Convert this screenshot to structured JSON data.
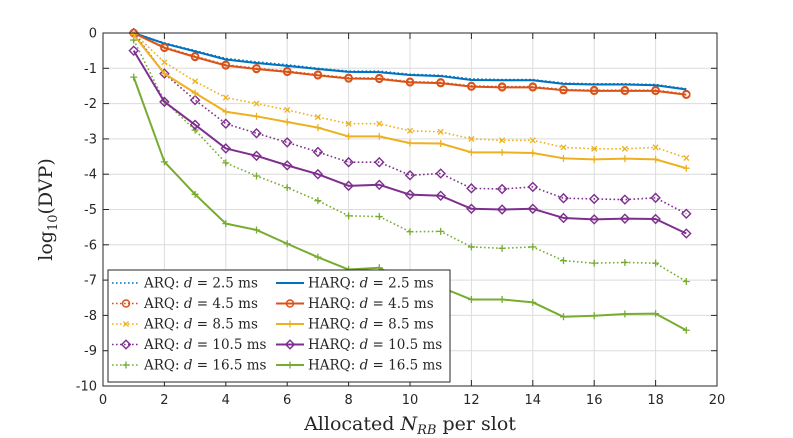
{
  "chart_data": {
    "type": "line",
    "xlabel": "Allocated N_RB per slot",
    "xlabel_main": "Allocated ",
    "xlabel_var": "N",
    "xlabel_sub": "RB",
    "xlabel_tail": " per slot",
    "ylabel": "log10(DVP)",
    "ylabel_main": "log",
    "ylabel_sub": "10",
    "ylabel_tail": "(DVP)",
    "xlim": [
      0,
      20
    ],
    "ylim": [
      -10,
      0
    ],
    "xticks": [
      0,
      2,
      4,
      6,
      8,
      10,
      12,
      14,
      16,
      18,
      20
    ],
    "yticks": [
      0,
      -1,
      -2,
      -3,
      -4,
      -5,
      -6,
      -7,
      -8,
      -9,
      -10
    ],
    "grid": true,
    "legend_location": "bottom-left",
    "x": [
      1,
      2,
      3,
      4,
      5,
      6,
      7,
      8,
      9,
      10,
      11,
      12,
      13,
      14,
      15,
      16,
      17,
      18,
      19
    ],
    "series": [
      {
        "name": "ARQ: d = 2.5 ms",
        "scheme": "ARQ",
        "d": "2.5",
        "color": "#0072BD",
        "dash": "dotted",
        "marker": "none",
        "values": [
          0,
          -0.28,
          -0.5,
          -0.72,
          -0.82,
          -0.9,
          -1.0,
          -1.08,
          -1.08,
          -1.17,
          -1.2,
          -1.3,
          -1.32,
          -1.32,
          -1.42,
          -1.44,
          -1.44,
          -1.46,
          -1.58
        ]
      },
      {
        "name": "ARQ: d = 4.5 ms",
        "scheme": "ARQ",
        "d": "4.5",
        "color": "#D95319",
        "dash": "dotted",
        "marker": "circle",
        "values": [
          0,
          -0.4,
          -0.66,
          -0.9,
          -1.0,
          -1.08,
          -1.18,
          -1.27,
          -1.28,
          -1.38,
          -1.4,
          -1.5,
          -1.52,
          -1.52,
          -1.6,
          -1.62,
          -1.62,
          -1.62,
          -1.73
        ]
      },
      {
        "name": "ARQ: d = 8.5 ms",
        "scheme": "ARQ",
        "d": "8.5",
        "color": "#EDB120",
        "dash": "dotted",
        "marker": "x",
        "values": [
          0,
          -0.83,
          -1.37,
          -1.83,
          -2.0,
          -2.18,
          -2.38,
          -2.57,
          -2.57,
          -2.77,
          -2.8,
          -3.0,
          -3.04,
          -3.04,
          -3.24,
          -3.28,
          -3.28,
          -3.24,
          -3.54
        ]
      },
      {
        "name": "ARQ: d = 10.5 ms",
        "scheme": "ARQ",
        "d": "10.5",
        "color": "#7E2F8E",
        "dash": "dotted",
        "marker": "diamond",
        "values": [
          0,
          -1.15,
          -1.9,
          -2.57,
          -2.84,
          -3.1,
          -3.37,
          -3.66,
          -3.66,
          -4.03,
          -3.98,
          -4.4,
          -4.42,
          -4.36,
          -4.68,
          -4.7,
          -4.72,
          -4.67,
          -5.12
        ]
      },
      {
        "name": "ARQ: d = 16.5 ms",
        "scheme": "ARQ",
        "d": "16.5",
        "color": "#77AC30",
        "dash": "dotted",
        "marker": "plus",
        "values": [
          -0.2,
          -1.93,
          -2.75,
          -3.68,
          -4.05,
          -4.38,
          -4.75,
          -5.18,
          -5.2,
          -5.63,
          -5.62,
          -6.06,
          -6.1,
          -6.06,
          -6.45,
          -6.52,
          -6.5,
          -6.52,
          -7.04
        ]
      },
      {
        "name": "HARQ: d = 2.5 ms",
        "scheme": "HARQ",
        "d": "2.5",
        "color": "#0072BD",
        "dash": "solid",
        "marker": "none",
        "values": [
          0,
          -0.3,
          -0.52,
          -0.75,
          -0.85,
          -0.93,
          -1.02,
          -1.1,
          -1.11,
          -1.19,
          -1.22,
          -1.33,
          -1.34,
          -1.34,
          -1.44,
          -1.46,
          -1.46,
          -1.48,
          -1.6
        ]
      },
      {
        "name": "HARQ: d = 4.5 ms",
        "scheme": "HARQ",
        "d": "4.5",
        "color": "#D95319",
        "dash": "solid",
        "marker": "circle",
        "values": [
          0,
          -0.42,
          -0.68,
          -0.92,
          -1.02,
          -1.1,
          -1.2,
          -1.29,
          -1.3,
          -1.4,
          -1.42,
          -1.52,
          -1.54,
          -1.54,
          -1.62,
          -1.64,
          -1.64,
          -1.64,
          -1.75
        ]
      },
      {
        "name": "HARQ: d = 8.5 ms",
        "scheme": "HARQ",
        "d": "8.5",
        "color": "#EDB120",
        "dash": "solid",
        "marker": "plus",
        "values": [
          -0.05,
          -1.15,
          -1.7,
          -2.23,
          -2.36,
          -2.52,
          -2.68,
          -2.93,
          -2.93,
          -3.12,
          -3.13,
          -3.38,
          -3.38,
          -3.4,
          -3.55,
          -3.58,
          -3.56,
          -3.58,
          -3.83
        ]
      },
      {
        "name": "HARQ: d = 10.5 ms",
        "scheme": "HARQ",
        "d": "10.5",
        "color": "#7E2F8E",
        "dash": "solid",
        "marker": "diamond",
        "values": [
          -0.5,
          -1.95,
          -2.6,
          -3.27,
          -3.48,
          -3.75,
          -4.0,
          -4.33,
          -4.3,
          -4.58,
          -4.61,
          -4.98,
          -5.0,
          -4.98,
          -5.24,
          -5.28,
          -5.26,
          -5.27,
          -5.68
        ]
      },
      {
        "name": "HARQ: d = 16.5 ms",
        "scheme": "HARQ",
        "d": "16.5",
        "color": "#77AC30",
        "dash": "solid",
        "marker": "plus",
        "values": [
          -1.25,
          -3.65,
          -4.57,
          -5.4,
          -5.58,
          -5.97,
          -6.35,
          -6.7,
          -6.65,
          -7.1,
          -7.2,
          -7.55,
          -7.55,
          -7.63,
          -8.04,
          -8.01,
          -7.96,
          -7.95,
          -8.42
        ]
      }
    ]
  }
}
